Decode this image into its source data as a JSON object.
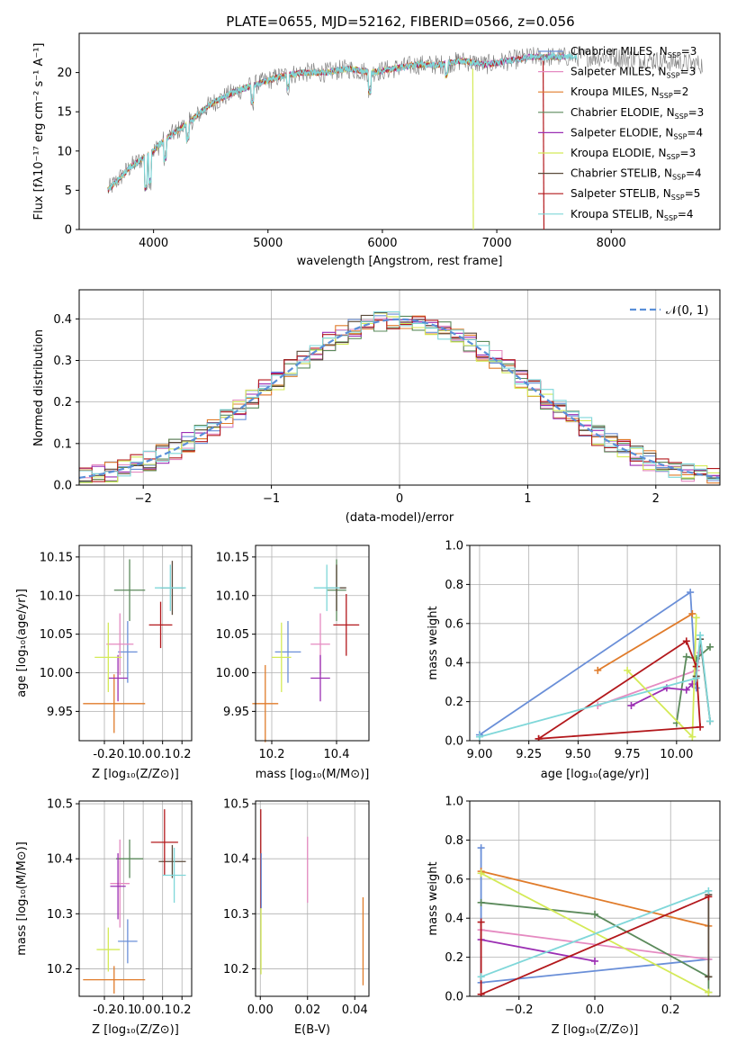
{
  "chart_data": [
    {
      "type": "line",
      "title": "PLATE=0655, MJD=52162, FIBERID=0566, z=0.056",
      "xlabel": "wavelength [Angstrom, rest frame]",
      "ylabel": "Flux [fλ10⁻¹⁷ erg cm⁻² s⁻¹ A⁻¹]",
      "xlim": [
        3350,
        8950
      ],
      "ylim": [
        0,
        25
      ],
      "xticks": [
        4000,
        5000,
        6000,
        7000,
        8000
      ],
      "yticks": [
        0,
        5,
        10,
        15,
        20
      ],
      "grid": false,
      "legend_position": "upper-right",
      "continuum_points": [
        [
          3600,
          5
        ],
        [
          3700,
          6.5
        ],
        [
          3800,
          8
        ],
        [
          3900,
          9
        ],
        [
          4000,
          10
        ],
        [
          4100,
          11.5
        ],
        [
          4200,
          12.5
        ],
        [
          4300,
          13.5
        ],
        [
          4500,
          16
        ],
        [
          4700,
          17.5
        ],
        [
          4900,
          18.5
        ],
        [
          5100,
          19.5
        ],
        [
          5300,
          20
        ],
        [
          5500,
          20
        ],
        [
          5700,
          20.5
        ],
        [
          5900,
          20
        ],
        [
          6100,
          20.5
        ],
        [
          6300,
          21
        ],
        [
          6500,
          21
        ],
        [
          6700,
          21.5
        ],
        [
          6900,
          21
        ],
        [
          7100,
          21.5
        ],
        [
          7300,
          22
        ],
        [
          7500,
          22
        ],
        [
          7700,
          22
        ],
        [
          8000,
          22
        ],
        [
          8400,
          21.5
        ],
        [
          8800,
          21
        ]
      ],
      "series": [
        {
          "name": "Chabrier MILES, N_SSP=3",
          "color": "#6a8fd8"
        },
        {
          "name": "Salpeter MILES, N_SSP=3",
          "color": "#e58ac1"
        },
        {
          "name": "Kroupa MILES, N_SSP=2",
          "color": "#e07b2a"
        },
        {
          "name": "Chabrier ELODIE, N_SSP=3",
          "color": "#5b8a5b"
        },
        {
          "name": "Salpeter ELODIE, N_SSP=4",
          "color": "#9b2fb3"
        },
        {
          "name": "Kroupa ELODIE, N_SSP=3",
          "color": "#d4ea57"
        },
        {
          "name": "Chabrier STELIB, N_SSP=4",
          "color": "#5a4a3a"
        },
        {
          "name": "Salpeter STELIB, N_SSP=5",
          "color": "#b3181c"
        },
        {
          "name": "Kroupa STELIB, N_SSP=4",
          "color": "#7fd7d9"
        }
      ]
    },
    {
      "type": "line",
      "xlabel": "(data-model)/error",
      "ylabel": "Normed distribution",
      "xlim": [
        -2.5,
        2.5
      ],
      "ylim": [
        0,
        0.47
      ],
      "xticks": [
        -2,
        -1,
        0,
        1,
        2
      ],
      "yticks": [
        0.0,
        0.1,
        0.2,
        0.3,
        0.4
      ],
      "grid": true,
      "legend_position": "upper-right",
      "reference_curve": {
        "name": "𝒩(0, 1)",
        "color": "#5a8fd8"
      },
      "series": [
        {
          "color": "#6a8fd8"
        },
        {
          "color": "#e58ac1"
        },
        {
          "color": "#e07b2a"
        },
        {
          "color": "#5b8a5b"
        },
        {
          "color": "#9b2fb3"
        },
        {
          "color": "#d4ea57"
        },
        {
          "color": "#5a4a3a"
        },
        {
          "color": "#b3181c"
        },
        {
          "color": "#7fd7d9"
        }
      ]
    },
    {
      "type": "scatter",
      "xlabel": "Z [log₁₀(Z/Z⊙)]",
      "ylabel": "age  [log₁₀(age/yr)]",
      "xlim": [
        -0.33,
        0.25
      ],
      "ylim": [
        9.912,
        10.165
      ],
      "xticks": [
        "-0.2",
        "-0.1",
        "0.0",
        "0.1",
        "0.2"
      ],
      "yticks": [
        "9.95",
        "10.00",
        "10.05",
        "10.10",
        "10.15"
      ],
      "points": [
        {
          "x": -0.08,
          "y": 10.027,
          "xerr": 0.05,
          "yerr": 0.04,
          "color": "#6a8fd8"
        },
        {
          "x": -0.12,
          "y": 10.037,
          "xerr": 0.07,
          "yerr": 0.04,
          "color": "#e58ac1"
        },
        {
          "x": -0.15,
          "y": 9.96,
          "xerr": 0.16,
          "yerr": 0.038,
          "color": "#e07b2a"
        },
        {
          "x": -0.07,
          "y": 10.107,
          "xerr": 0.08,
          "yerr": 0.04,
          "color": "#5b8a5b"
        },
        {
          "x": -0.13,
          "y": 9.993,
          "xerr": 0.05,
          "yerr": 0.03,
          "color": "#9b2fb3"
        },
        {
          "x": -0.18,
          "y": 10.02,
          "xerr": 0.07,
          "yerr": 0.045,
          "color": "#d4ea57"
        },
        {
          "x": 0.15,
          "y": 10.11,
          "xerr": 0.06,
          "yerr": 0.035,
          "color": "#5a4a3a"
        },
        {
          "x": 0.09,
          "y": 10.062,
          "xerr": 0.06,
          "yerr": 0.03,
          "color": "#b3181c"
        },
        {
          "x": 0.14,
          "y": 10.11,
          "xerr": 0.08,
          "yerr": 0.03,
          "color": "#7fd7d9"
        }
      ]
    },
    {
      "type": "scatter",
      "xlabel": "mass [log₁₀(M/M⊙)]",
      "ylabel": "",
      "xlim": [
        10.15,
        10.5
      ],
      "ylim": [
        9.912,
        10.165
      ],
      "xticks": [
        "10.2",
        "10.4"
      ],
      "yticks": [
        "9.95",
        "10.00",
        "10.05",
        "10.10",
        "10.15"
      ],
      "points": [
        {
          "x": 10.25,
          "y": 10.027,
          "xerr": 0.04,
          "yerr": 0.04,
          "color": "#6a8fd8"
        },
        {
          "x": 10.35,
          "y": 10.037,
          "xerr": 0.03,
          "yerr": 0.04,
          "color": "#e58ac1"
        },
        {
          "x": 10.18,
          "y": 9.96,
          "xerr": 0.04,
          "yerr": 0.05,
          "color": "#e07b2a"
        },
        {
          "x": 10.4,
          "y": 10.107,
          "xerr": 0.03,
          "yerr": 0.04,
          "color": "#5b8a5b"
        },
        {
          "x": 10.35,
          "y": 9.993,
          "xerr": 0.03,
          "yerr": 0.03,
          "color": "#9b2fb3"
        },
        {
          "x": 10.23,
          "y": 10.02,
          "xerr": 0.03,
          "yerr": 0.045,
          "color": "#d4ea57"
        },
        {
          "x": 10.4,
          "y": 10.11,
          "xerr": 0.03,
          "yerr": 0.03,
          "color": "#5a4a3a"
        },
        {
          "x": 10.43,
          "y": 10.062,
          "xerr": 0.04,
          "yerr": 0.04,
          "color": "#b3181c"
        },
        {
          "x": 10.37,
          "y": 10.11,
          "xerr": 0.04,
          "yerr": 0.03,
          "color": "#7fd7d9"
        }
      ]
    },
    {
      "type": "line",
      "xlabel": "age  [log₁₀(age/yr)]",
      "ylabel": "mass weight",
      "xlim": [
        8.95,
        10.22
      ],
      "ylim": [
        0,
        1.0
      ],
      "xticks": [
        "9.00",
        "9.25",
        "9.50",
        "9.75",
        "10.00"
      ],
      "yticks": [
        "0.0",
        "0.2",
        "0.4",
        "0.6",
        "0.8",
        "1.0"
      ],
      "grid": true,
      "series": [
        {
          "color": "#6a8fd8",
          "x": [
            9.0,
            10.07,
            10.1
          ],
          "y": [
            0.03,
            0.76,
            0.27
          ]
        },
        {
          "color": "#e58ac1",
          "x": [
            9.6,
            10.1,
            10.12
          ],
          "y": [
            0.18,
            0.36,
            0.45
          ]
        },
        {
          "color": "#e07b2a",
          "x": [
            9.6,
            10.08
          ],
          "y": [
            0.36,
            0.65
          ]
        },
        {
          "color": "#5b8a5b",
          "x": [
            10.0,
            10.05,
            10.1,
            10.17
          ],
          "y": [
            0.09,
            0.43,
            0.42,
            0.48
          ]
        },
        {
          "color": "#9b2fb3",
          "x": [
            9.77,
            9.95,
            10.05,
            10.08
          ],
          "y": [
            0.18,
            0.27,
            0.26,
            0.29
          ]
        },
        {
          "color": "#d4ea57",
          "x": [
            9.75,
            10.08,
            10.1
          ],
          "y": [
            0.36,
            0.02,
            0.63
          ]
        },
        {
          "color": "#5a4a3a",
          "x": [
            10.1,
            10.12,
            10.17
          ],
          "y": [
            0.33,
            0.52,
            0.1
          ]
        },
        {
          "color": "#b3181c",
          "x": [
            9.3,
            10.05,
            10.1,
            10.12,
            9.3
          ],
          "y": [
            0.01,
            0.51,
            0.38,
            0.07,
            0.01
          ]
        },
        {
          "color": "#7fd7d9",
          "x": [
            9.0,
            10.1,
            10.12,
            10.17
          ],
          "y": [
            0.02,
            0.32,
            0.54,
            0.1
          ]
        }
      ]
    },
    {
      "type": "scatter",
      "xlabel": "Z [log₁₀(Z/Z⊙)]",
      "ylabel": "mass [log₁₀(M/M⊙)]",
      "xlim": [
        -0.33,
        0.25
      ],
      "ylim": [
        10.15,
        10.505
      ],
      "xticks": [
        "-0.2",
        "-0.1",
        "0.0",
        "0.1",
        "0.2"
      ],
      "yticks": [
        "10.2",
        "10.3",
        "10.4",
        "10.5"
      ],
      "points": [
        {
          "x": -0.08,
          "y": 10.25,
          "xerr": 0.05,
          "yerr": 0.04,
          "color": "#6a8fd8"
        },
        {
          "x": -0.12,
          "y": 10.355,
          "xerr": 0.05,
          "yerr": 0.08,
          "color": "#e58ac1"
        },
        {
          "x": -0.15,
          "y": 10.18,
          "xerr": 0.16,
          "yerr": 0.025,
          "color": "#e07b2a"
        },
        {
          "x": -0.07,
          "y": 10.4,
          "xerr": 0.07,
          "yerr": 0.035,
          "color": "#5b8a5b"
        },
        {
          "x": -0.13,
          "y": 10.35,
          "xerr": 0.04,
          "yerr": 0.06,
          "color": "#9b2fb3"
        },
        {
          "x": -0.18,
          "y": 10.235,
          "xerr": 0.06,
          "yerr": 0.04,
          "color": "#d4ea57"
        },
        {
          "x": 0.15,
          "y": 10.395,
          "xerr": 0.07,
          "yerr": 0.03,
          "color": "#5a4a3a"
        },
        {
          "x": 0.11,
          "y": 10.43,
          "xerr": 0.07,
          "yerr": 0.06,
          "color": "#b3181c"
        },
        {
          "x": 0.16,
          "y": 10.37,
          "xerr": 0.06,
          "yerr": 0.05,
          "color": "#7fd7d9"
        }
      ]
    },
    {
      "type": "scatter",
      "xlabel": "E(B-V)",
      "ylabel": "",
      "xlim": [
        -0.002,
        0.046
      ],
      "ylim": [
        10.15,
        10.505
      ],
      "xticks": [
        "0.00",
        "0.02",
        "0.04"
      ],
      "yticks": [
        "10.2",
        "10.3",
        "10.4",
        "10.5"
      ],
      "points": [
        {
          "x": 0.0002,
          "y": 10.4,
          "yerr": 0.09,
          "color": "#b3181c"
        },
        {
          "x": 0.0004,
          "y": 10.36,
          "yerr": 0.05,
          "color": "#6a8fd8"
        },
        {
          "x": 0.0003,
          "y": 10.25,
          "yerr": 0.06,
          "color": "#d4ea57"
        },
        {
          "x": 0.02,
          "y": 10.38,
          "yerr": 0.06,
          "color": "#e58ac1"
        },
        {
          "x": 0.0435,
          "y": 10.25,
          "yerr": 0.08,
          "color": "#e07b2a"
        }
      ]
    },
    {
      "type": "line",
      "xlabel": "Z [log₁₀(Z/Z⊙)]",
      "ylabel": "mass weight",
      "xlim": [
        -0.33,
        0.33
      ],
      "ylim": [
        0,
        1.0
      ],
      "xticks": [
        "−0.2",
        "0.0",
        "0.2"
      ],
      "yticks": [
        "0.0",
        "0.2",
        "0.4",
        "0.6",
        "0.8",
        "1.0"
      ],
      "grid": true,
      "series": [
        {
          "color": "#6a8fd8",
          "x": [
            -0.3,
            -0.3,
            0.3
          ],
          "y": [
            0.76,
            0.07,
            0.19
          ]
        },
        {
          "color": "#e58ac1",
          "x": [
            -0.3,
            0.3
          ],
          "y": [
            0.34,
            0.19
          ]
        },
        {
          "color": "#e07b2a",
          "x": [
            -0.3,
            0.3
          ],
          "y": [
            0.64,
            0.36
          ]
        },
        {
          "color": "#5b8a5b",
          "x": [
            -0.3,
            0.0,
            0.3,
            0.3
          ],
          "y": [
            0.48,
            0.42,
            0.1,
            0.02
          ]
        },
        {
          "color": "#9b2fb3",
          "x": [
            -0.3,
            0.0
          ],
          "y": [
            0.29,
            0.18
          ]
        },
        {
          "color": "#d4ea57",
          "x": [
            -0.3,
            0.3
          ],
          "y": [
            0.63,
            0.02
          ]
        },
        {
          "color": "#5a4a3a",
          "x": [
            0.3,
            0.3
          ],
          "y": [
            0.1,
            0.52
          ]
        },
        {
          "color": "#b3181c",
          "x": [
            -0.3,
            -0.3,
            0.3
          ],
          "y": [
            0.38,
            0.01,
            0.51
          ]
        },
        {
          "color": "#7fd7d9",
          "x": [
            -0.3,
            0.3
          ],
          "y": [
            0.1,
            0.54
          ]
        }
      ]
    }
  ]
}
